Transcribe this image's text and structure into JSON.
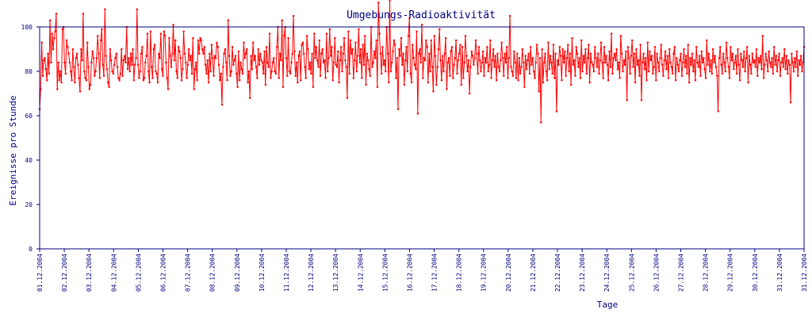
{
  "chart_data": {
    "type": "line",
    "title": "Umgebungs-Radioaktivität",
    "xlabel": "Tage",
    "ylabel": "Ereignisse pro Stunde",
    "ylim": [
      0,
      100
    ],
    "yticks": [
      0,
      20,
      40,
      60,
      80,
      100
    ],
    "xtick_labels": [
      "01.12.2004",
      "02.12.2004",
      "03.12.2004",
      "04.12.2004",
      "05.12.2004",
      "06.12.2004",
      "07.12.2004",
      "08.12.2004",
      "09.12.2004",
      "10.12.2004",
      "11.12.2004",
      "12.12.2004",
      "13.12.2004",
      "14.12.2004",
      "15.12.2004",
      "16.12.2004",
      "17.12.2004",
      "18.12.2004",
      "19.12.2004",
      "20.12.2004",
      "21.12.2004",
      "22.12.2004",
      "23.12.2004",
      "24.12.2004",
      "25.12.2004",
      "26.12.2004",
      "27.12.2004",
      "28.12.2004",
      "29.12.2004",
      "30.12.2004",
      "31.12.2004",
      "31.12.2004"
    ],
    "grid": false,
    "series": [
      {
        "color": "#ff0000",
        "x_unit": "hours since 01.12.2004 00:00",
        "values": [
          63,
          72,
          93,
          78,
          85,
          86,
          81,
          76,
          88,
          79,
          103,
          84,
          97,
          90,
          95,
          98,
          106,
          72,
          84,
          76,
          80,
          75,
          99,
          100,
          84,
          79,
          94,
          91,
          88,
          84,
          80,
          76,
          90,
          82,
          75,
          86,
          88,
          83,
          77,
          71,
          90,
          85,
          106,
          80,
          77,
          76,
          93,
          82,
          72,
          74,
          84,
          89,
          86,
          78,
          80,
          86,
          96,
          88,
          77,
          94,
          99,
          83,
          78,
          108,
          87,
          81,
          75,
          73,
          90,
          85,
          80,
          79,
          83,
          86,
          88,
          82,
          77,
          76,
          79,
          90,
          78,
          85,
          87,
          84,
          100,
          81,
          86,
          80,
          88,
          83,
          90,
          76,
          83,
          86,
          108,
          83,
          77,
          80,
          88,
          91,
          76,
          77,
          84,
          87,
          97,
          80,
          75,
          98,
          82,
          77,
          90,
          92,
          80,
          79,
          75,
          88,
          86,
          97,
          81,
          78,
          98,
          96,
          84,
          77,
          72,
          95,
          87,
          82,
          88,
          101,
          85,
          94,
          80,
          77,
          91,
          89,
          86,
          76,
          81,
          98,
          88,
          84,
          77,
          83,
          90,
          85,
          87,
          79,
          95,
          72,
          81,
          84,
          76,
          94,
          88,
          95,
          94,
          90,
          88,
          91,
          83,
          79,
          85,
          75,
          88,
          80,
          92,
          86,
          78,
          87,
          86,
          93,
          91,
          83,
          76,
          79,
          65,
          82,
          88,
          90,
          84,
          76,
          103,
          87,
          78,
          80,
          91,
          83,
          85,
          87,
          79,
          73,
          89,
          76,
          84,
          81,
          79,
          93,
          86,
          88,
          90,
          75,
          80,
          68,
          87,
          81,
          93,
          85,
          87,
          82,
          77,
          90,
          83,
          88,
          85,
          84,
          79,
          89,
          74,
          91,
          84,
          82,
          97,
          77,
          80,
          84,
          86,
          80,
          79,
          91,
          100,
          77,
          88,
          85,
          103,
          73,
          96,
          100,
          86,
          78,
          95,
          80,
          79,
          84,
          88,
          105,
          89,
          78,
          84,
          75,
          87,
          89,
          76,
          92,
          93,
          88,
          82,
          77,
          96,
          90,
          81,
          84,
          79,
          88,
          73,
          97,
          86,
          91,
          85,
          82,
          94,
          78,
          88,
          90,
          84,
          85,
          77,
          97,
          80,
          86,
          99,
          87,
          91,
          76,
          84,
          95,
          83,
          82,
          89,
          75,
          85,
          91,
          80,
          88,
          95,
          85,
          82,
          68,
          98,
          79,
          94,
          88,
          90,
          77,
          85,
          93,
          80,
          87,
          99,
          84,
          90,
          77,
          92,
          83,
          96,
          74,
          88,
          85,
          81,
          78,
          100,
          82,
          84,
          89,
          86,
          94,
          73,
          111,
          97,
          88,
          79,
          91,
          83,
          85,
          80,
          100,
          88,
          75,
          112,
          80,
          84,
          89,
          94,
          92,
          77,
          86,
          63,
          90,
          87,
          95,
          83,
          88,
          74,
          85,
          91,
          80,
          96,
          104,
          79,
          75,
          92,
          86,
          83,
          81,
          98,
          61,
          88,
          90,
          84,
          101,
          77,
          86,
          85,
          94,
          91,
          75,
          88,
          80,
          94,
          82,
          71,
          96,
          87,
          74,
          82,
          90,
          99,
          85,
          76,
          87,
          80,
          88,
          95,
          72,
          84,
          86,
          78,
          89,
          91,
          77,
          83,
          86,
          94,
          79,
          85,
          88,
          92,
          74,
          91,
          77,
          84,
          96,
          87,
          80,
          85,
          70,
          82,
          89,
          87,
          83,
          86,
          94,
          88,
          79,
          91,
          85,
          80,
          84,
          89,
          78,
          86,
          84,
          91,
          80,
          83,
          94,
          77,
          85,
          90,
          82,
          87,
          76,
          88,
          82,
          80,
          85,
          93,
          86,
          78,
          88,
          84,
          91,
          77,
          86,
          105,
          82,
          80,
          78,
          89,
          84,
          77,
          88,
          76,
          86,
          79,
          82,
          90,
          84,
          73,
          87,
          81,
          85,
          88,
          79,
          91,
          83,
          86,
          80,
          77,
          84,
          92,
          88,
          71,
          86,
          57,
          90,
          75,
          84,
          88,
          80,
          76,
          93,
          81,
          87,
          84,
          79,
          92,
          77,
          88,
          62,
          85,
          83,
          91,
          87,
          76,
          90,
          84,
          89,
          78,
          86,
          92,
          80,
          88,
          74,
          95,
          83,
          85,
          78,
          91,
          88,
          82,
          86,
          77,
          94,
          80,
          87,
          84,
          90,
          79,
          86,
          92,
          75,
          88,
          84,
          83,
          80,
          91,
          86,
          82,
          88,
          79,
          85,
          93,
          84,
          77,
          91,
          84,
          87,
          83,
          76,
          89,
          82,
          97,
          79,
          86,
          88,
          85,
          90,
          81,
          84,
          77,
          96,
          88,
          80,
          85,
          83,
          89,
          67,
          91,
          86,
          79,
          87,
          94,
          82,
          88,
          75,
          90,
          83,
          85,
          78,
          92,
          67,
          84,
          88,
          81,
          86,
          76,
          93,
          80,
          89,
          85,
          87,
          79,
          82,
          91,
          76,
          88,
          84,
          80,
          86,
          92,
          83,
          78,
          85,
          89,
          81,
          87,
          77,
          90,
          84,
          82,
          79,
          88,
          91,
          76,
          86,
          83,
          80,
          85,
          88,
          78,
          84,
          90,
          82,
          87,
          79,
          92,
          75,
          86,
          83,
          88,
          80,
          85,
          76,
          91,
          84,
          82,
          87,
          78,
          89,
          84,
          86,
          81,
          77,
          94,
          83,
          88,
          80,
          85,
          79,
          90,
          84,
          87,
          82,
          78,
          62,
          86,
          91,
          83,
          79,
          88,
          84,
          80,
          93,
          86,
          82,
          77,
          91,
          85,
          88,
          81,
          84,
          87,
          79,
          90,
          83,
          76,
          88,
          85,
          82,
          89,
          80,
          86,
          91,
          75,
          87,
          83,
          79,
          88,
          84,
          85,
          82,
          90,
          78,
          86,
          84,
          87,
          81,
          96,
          77,
          83,
          88,
          85,
          80,
          89,
          84,
          82,
          86,
          79,
          91,
          83,
          87,
          80,
          85,
          88,
          78,
          84,
          86,
          82,
          90,
          81,
          87,
          79,
          85,
          83,
          66,
          88,
          84,
          80,
          86,
          82,
          89,
          78,
          85,
          83,
          87,
          80,
          84,
          91
        ]
      }
    ]
  }
}
